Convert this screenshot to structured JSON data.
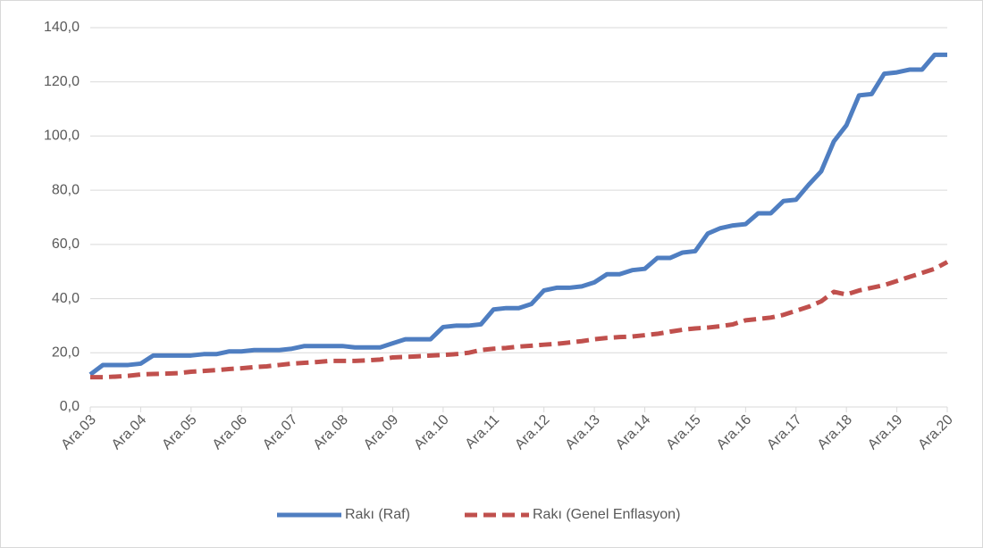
{
  "chart_data": {
    "type": "line",
    "categories": [
      "Ara.03",
      null,
      null,
      null,
      "Ara.04",
      null,
      null,
      null,
      "Ara.05",
      null,
      null,
      null,
      "Ara.06",
      null,
      null,
      null,
      "Ara.07",
      null,
      null,
      null,
      "Ara.08",
      null,
      null,
      null,
      "Ara.09",
      null,
      null,
      null,
      "Ara.10",
      null,
      null,
      null,
      "Ara.11",
      null,
      null,
      null,
      "Ara.12",
      null,
      null,
      null,
      "Ara.13",
      null,
      null,
      null,
      "Ara.14",
      null,
      null,
      null,
      "Ara.15",
      null,
      null,
      null,
      "Ara.16",
      null,
      null,
      null,
      "Ara.17",
      null,
      null,
      null,
      "Ara.18",
      null,
      null,
      null,
      "Ara.19",
      null,
      null,
      null,
      "Ara.20"
    ],
    "series": [
      {
        "name": "Rakı (Raf)",
        "color": "#4f7ec1",
        "dash": false,
        "values": [
          12,
          15.5,
          15.5,
          15.5,
          16,
          19,
          19,
          19,
          19,
          19.5,
          19.5,
          20.5,
          20.5,
          21,
          21,
          21,
          21.5,
          22.5,
          22.5,
          22.5,
          22.5,
          22,
          22,
          22,
          23.5,
          25,
          25,
          25,
          29.5,
          30,
          30,
          30.5,
          36,
          36.5,
          36.5,
          38,
          43,
          44,
          44,
          44.5,
          46,
          49,
          49,
          50.5,
          51,
          55,
          55,
          57,
          57.5,
          64,
          66,
          67,
          67.5,
          71.5,
          71.5,
          76,
          76.5,
          82,
          87,
          98,
          104,
          115,
          115.5,
          123,
          123.5,
          124.5,
          124.5,
          130,
          130
        ]
      },
      {
        "name": "Rakı (Genel Enflasyon)",
        "color": "#c0504d",
        "dash": true,
        "values": [
          11,
          11,
          11.2,
          11.5,
          12,
          12.2,
          12.3,
          12.5,
          13,
          13.3,
          13.6,
          14,
          14.3,
          14.7,
          15,
          15.5,
          16,
          16.3,
          16.6,
          17,
          17,
          17,
          17.2,
          17.5,
          18.3,
          18.5,
          18.7,
          19,
          19.2,
          19.5,
          20,
          21,
          21.5,
          21.8,
          22.3,
          22.6,
          23,
          23.3,
          23.8,
          24.3,
          25,
          25.5,
          25.8,
          26,
          26.5,
          27,
          27.8,
          28.5,
          29,
          29.3,
          29.8,
          30.5,
          32,
          32.5,
          33,
          34,
          35.5,
          37,
          39,
          42.5,
          41.5,
          43,
          44,
          45,
          46.5,
          48,
          49.5,
          51,
          53.5
        ]
      }
    ],
    "ylim": [
      0,
      140
    ],
    "yticks": [
      {
        "value": 0,
        "label": "0,0"
      },
      {
        "value": 20,
        "label": "20,0"
      },
      {
        "value": 40,
        "label": "40,0"
      },
      {
        "value": 60,
        "label": "60,0"
      },
      {
        "value": 80,
        "label": "80,0"
      },
      {
        "value": 100,
        "label": "100,0"
      },
      {
        "value": 120,
        "label": "120,0"
      },
      {
        "value": 140,
        "label": "140,0"
      }
    ],
    "grid": true,
    "legend": "bottom"
  }
}
